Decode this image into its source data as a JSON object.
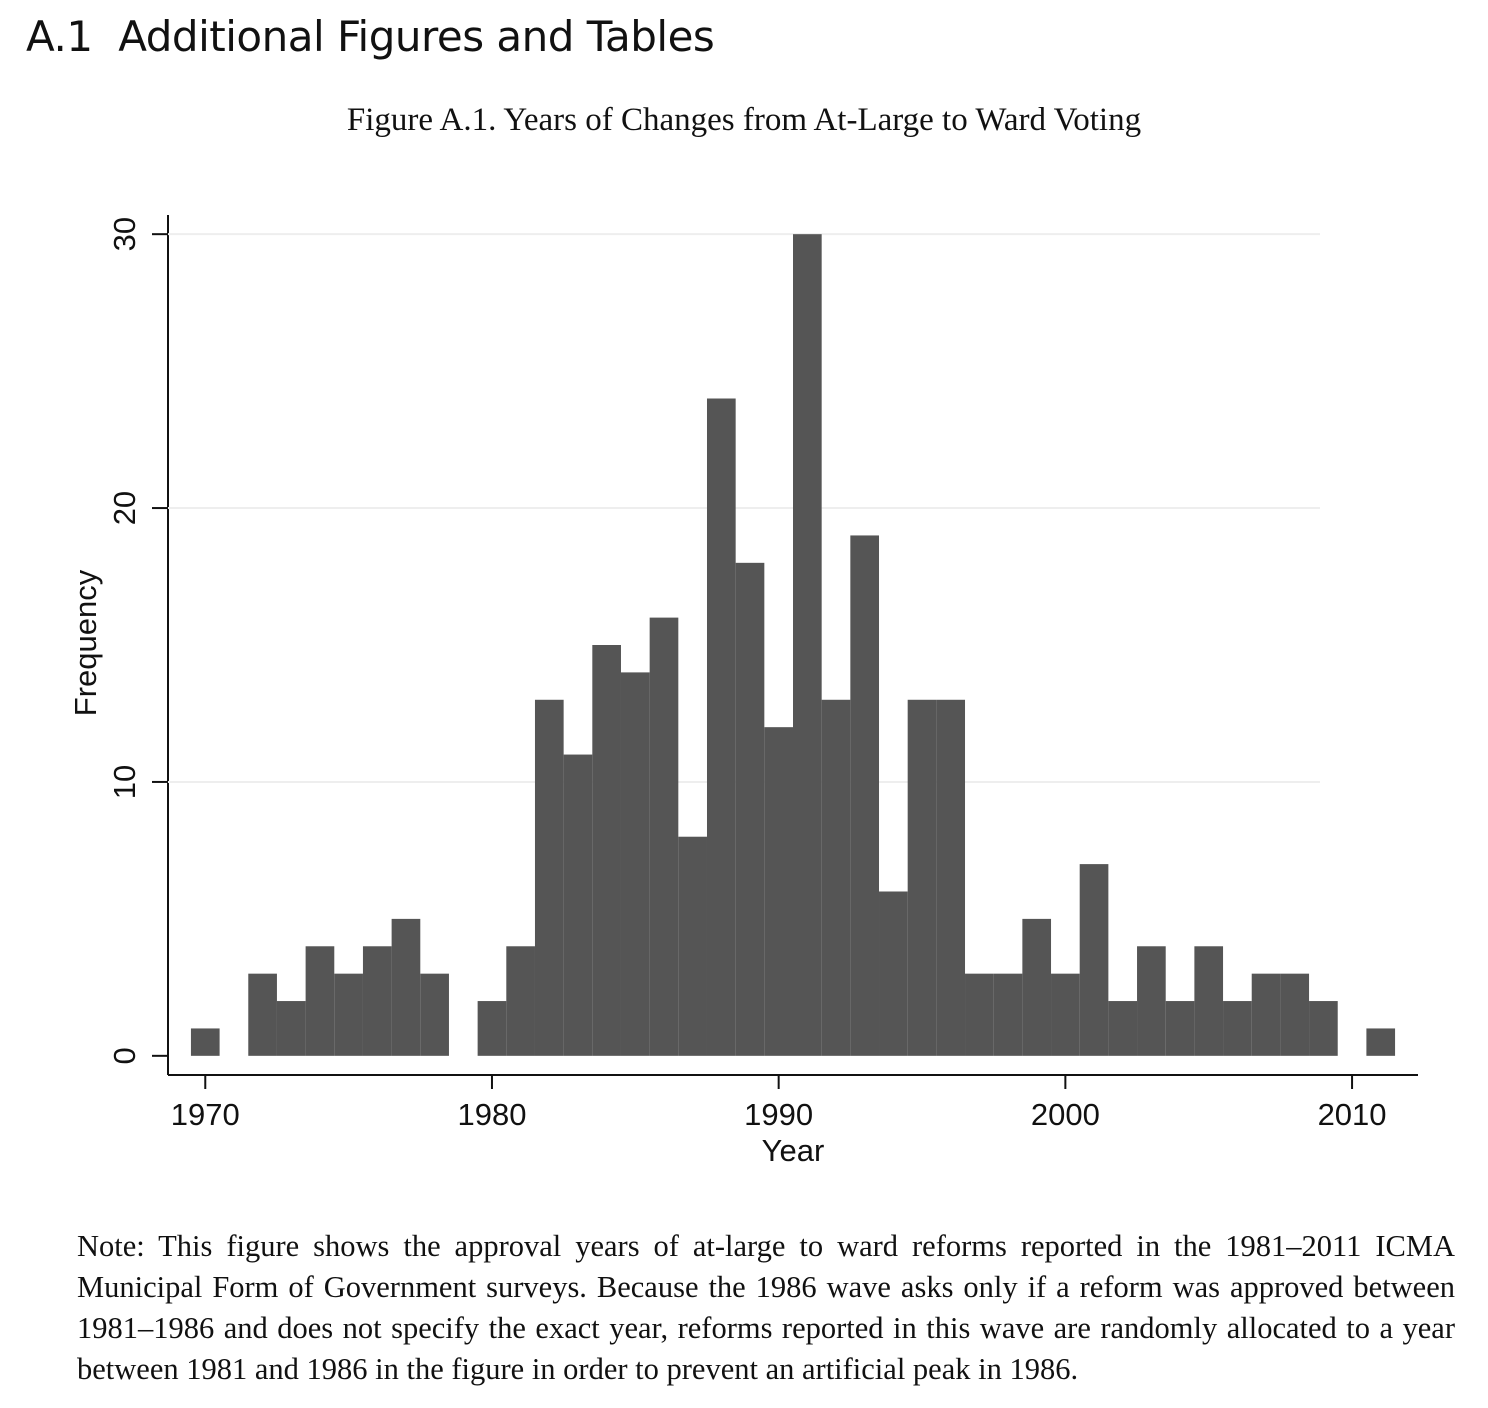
{
  "heading": "A.1  Additional Figures and Tables",
  "caption": "Figure A.1. Years of Changes from At-Large to Ward Voting",
  "chart_data": {
    "type": "histogram",
    "xlabel": "Year",
    "ylabel": "Frequency",
    "bins": [
      1969.5,
      1970.5,
      1971.5,
      1972.5,
      1973.5,
      1974.5,
      1975.5,
      1976.5,
      1977.5,
      1978.5,
      1979.5,
      1980.5,
      1981.5,
      1982.5,
      1983.5,
      1984.5,
      1985.5,
      1986.5,
      1987.5,
      1988.5,
      1989.5,
      1990.5,
      1991.5,
      1992.5,
      1993.5,
      1994.5,
      1995.5,
      1996.5,
      1997.5,
      1998.5,
      1999.5,
      2000.5,
      2001.5,
      2002.5,
      2003.5,
      2004.5,
      2005.5,
      2006.5,
      2007.5,
      2008.5,
      2009.5,
      2010.5,
      2011.5
    ],
    "values": [
      1,
      0,
      3,
      2,
      4,
      3,
      4,
      5,
      3,
      0,
      2,
      4,
      13,
      11,
      15,
      14,
      16,
      8,
      24,
      18,
      12,
      30,
      13,
      19,
      6,
      13,
      13,
      3,
      3,
      5,
      3,
      7,
      2,
      4,
      2,
      4,
      2,
      3,
      3,
      2,
      0,
      1
    ],
    "color": "#555555",
    "xlim": [
      1968.7,
      2012.3
    ],
    "xticks": [
      1970,
      1980,
      1990,
      2000,
      2010
    ],
    "ylim": [
      -0.7,
      30.7
    ],
    "yticks": [
      0,
      10,
      20,
      30
    ],
    "grid": true
  },
  "note": "Note: This figure shows the approval years of at-large to ward reforms reported in the 1981–2011 ICMA Municipal Form of Government surveys. Because the 1986 wave asks only if a reform was approved between 1981–1986 and does not specify the exact year, reforms reported in this wave are randomly allocated to a year between 1981 and 1986 in the figure in order to prevent an artificial peak in 1986."
}
